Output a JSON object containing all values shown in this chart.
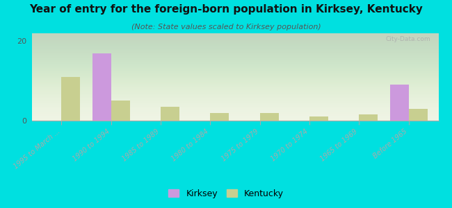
{
  "title": "Year of entry for the foreign-born population in Kirksey, Kentucky",
  "subtitle": "(Note: State values scaled to Kirksey population)",
  "categories": [
    "1995 to March ...",
    "1990 to 1994",
    "1985 to 1989",
    "1980 to 1984",
    "1975 to 1979",
    "1970 to 1974",
    "1965 to 1969",
    "Before 1965"
  ],
  "kirksey_values": [
    0,
    17,
    0,
    0,
    0,
    0,
    0,
    9
  ],
  "kentucky_values": [
    11,
    5,
    3.5,
    2,
    2,
    1,
    1.5,
    3
  ],
  "kirksey_color": "#cc99dd",
  "kentucky_color": "#c8cf90",
  "background_color": "#00e0e0",
  "plot_bg_color": "#eef3e2",
  "ylim": [
    0,
    22
  ],
  "yticks": [
    0,
    20
  ],
  "bar_width": 0.38,
  "title_fontsize": 11,
  "subtitle_fontsize": 8,
  "watermark": "City-Data.com"
}
